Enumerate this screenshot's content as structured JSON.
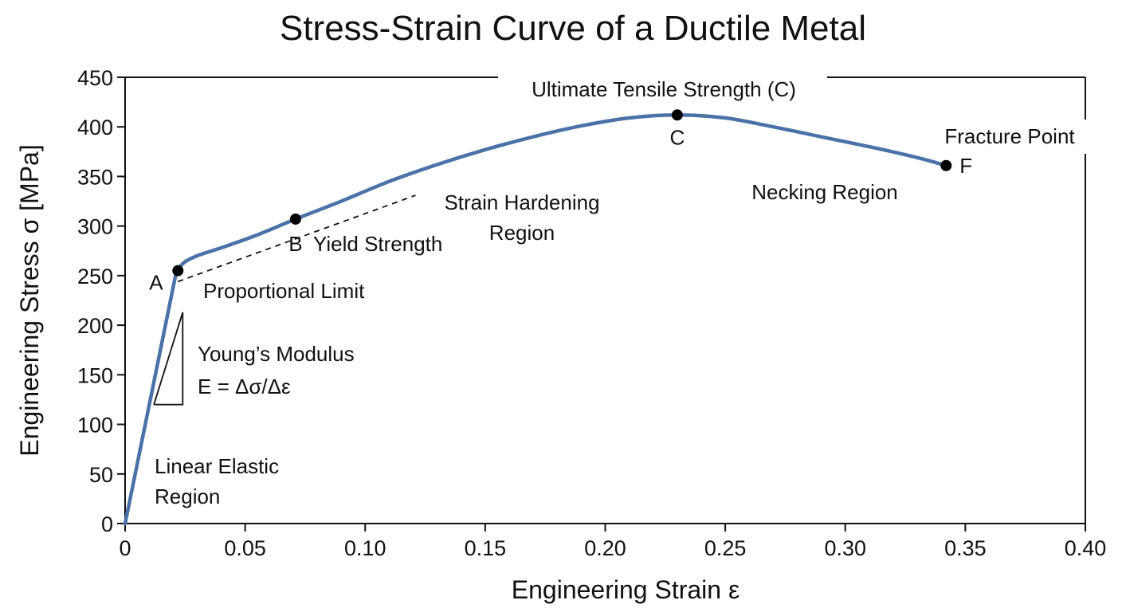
{
  "chart_data": {
    "type": "line",
    "title": "Stress-Strain Curve of a Ductile Metal",
    "xlabel": "Engineering Strain ε",
    "ylabel": "Engineering Stress σ [MPa]",
    "xlim": [
      0,
      0.4
    ],
    "ylim": [
      0,
      450
    ],
    "x_ticks": [
      {
        "value": 0,
        "label": "0"
      },
      {
        "value": 0.05,
        "label": "0.05"
      },
      {
        "value": 0.1,
        "label": "0.10"
      },
      {
        "value": 0.15,
        "label": "0.15"
      },
      {
        "value": 0.2,
        "label": "0.20"
      },
      {
        "value": 0.25,
        "label": "0.25"
      },
      {
        "value": 0.3,
        "label": "0.30"
      },
      {
        "value": 0.35,
        "label": "0.35"
      },
      {
        "value": 0.4,
        "label": "0.40"
      }
    ],
    "y_ticks": [
      {
        "value": 0,
        "label": "0"
      },
      {
        "value": 50,
        "label": "50"
      },
      {
        "value": 100,
        "label": "100"
      },
      {
        "value": 150,
        "label": "150"
      },
      {
        "value": 200,
        "label": "200"
      },
      {
        "value": 250,
        "label": "250"
      },
      {
        "value": 300,
        "label": "300"
      },
      {
        "value": 350,
        "label": "350"
      },
      {
        "value": 400,
        "label": "400"
      },
      {
        "value": 450,
        "label": "450"
      }
    ],
    "grid": false,
    "line_color": "#4a72a8",
    "series": [
      {
        "x": [
          0,
          0.021,
          0.024,
          0.03,
          0.04,
          0.055,
          0.071,
          0.09,
          0.11,
          0.13,
          0.15,
          0.17,
          0.19,
          0.21,
          0.23,
          0.25,
          0.27,
          0.29,
          0.31,
          0.33,
          0.342
        ],
        "y": [
          0,
          250,
          262,
          270,
          278,
          291,
          307,
          325,
          345,
          362,
          377,
          390,
          401,
          409,
          412,
          409,
          400,
          390,
          380,
          369,
          361
        ]
      }
    ],
    "points": [
      {
        "label": "A",
        "x": 0.022,
        "y": 255
      },
      {
        "label": "B",
        "x": 0.071,
        "y": 307
      },
      {
        "label": "C",
        "x": 0.23,
        "y": 412
      },
      {
        "label": "F",
        "x": 0.342,
        "y": 361
      }
    ],
    "offset_line": {
      "x": [
        0.022,
        0.121
      ],
      "y": [
        244,
        331
      ]
    },
    "modulus_triangle": {
      "x": [
        0.012,
        0.024
      ],
      "y": [
        120,
        213
      ]
    },
    "annotations": {
      "uts": "Ultimate Tensile Strength (C)",
      "fracture": "Fracture Point",
      "necking": "Necking Region",
      "hardening_1": "Strain Hardening",
      "hardening_2": "Region",
      "yield": "Yield Strength",
      "proportional": "Proportional Limit",
      "modulus_1": "Young’s Modulus",
      "modulus_2": "E = Δσ/Δε",
      "elastic_1": "Linear Elastic",
      "elastic_2": "Region"
    }
  }
}
